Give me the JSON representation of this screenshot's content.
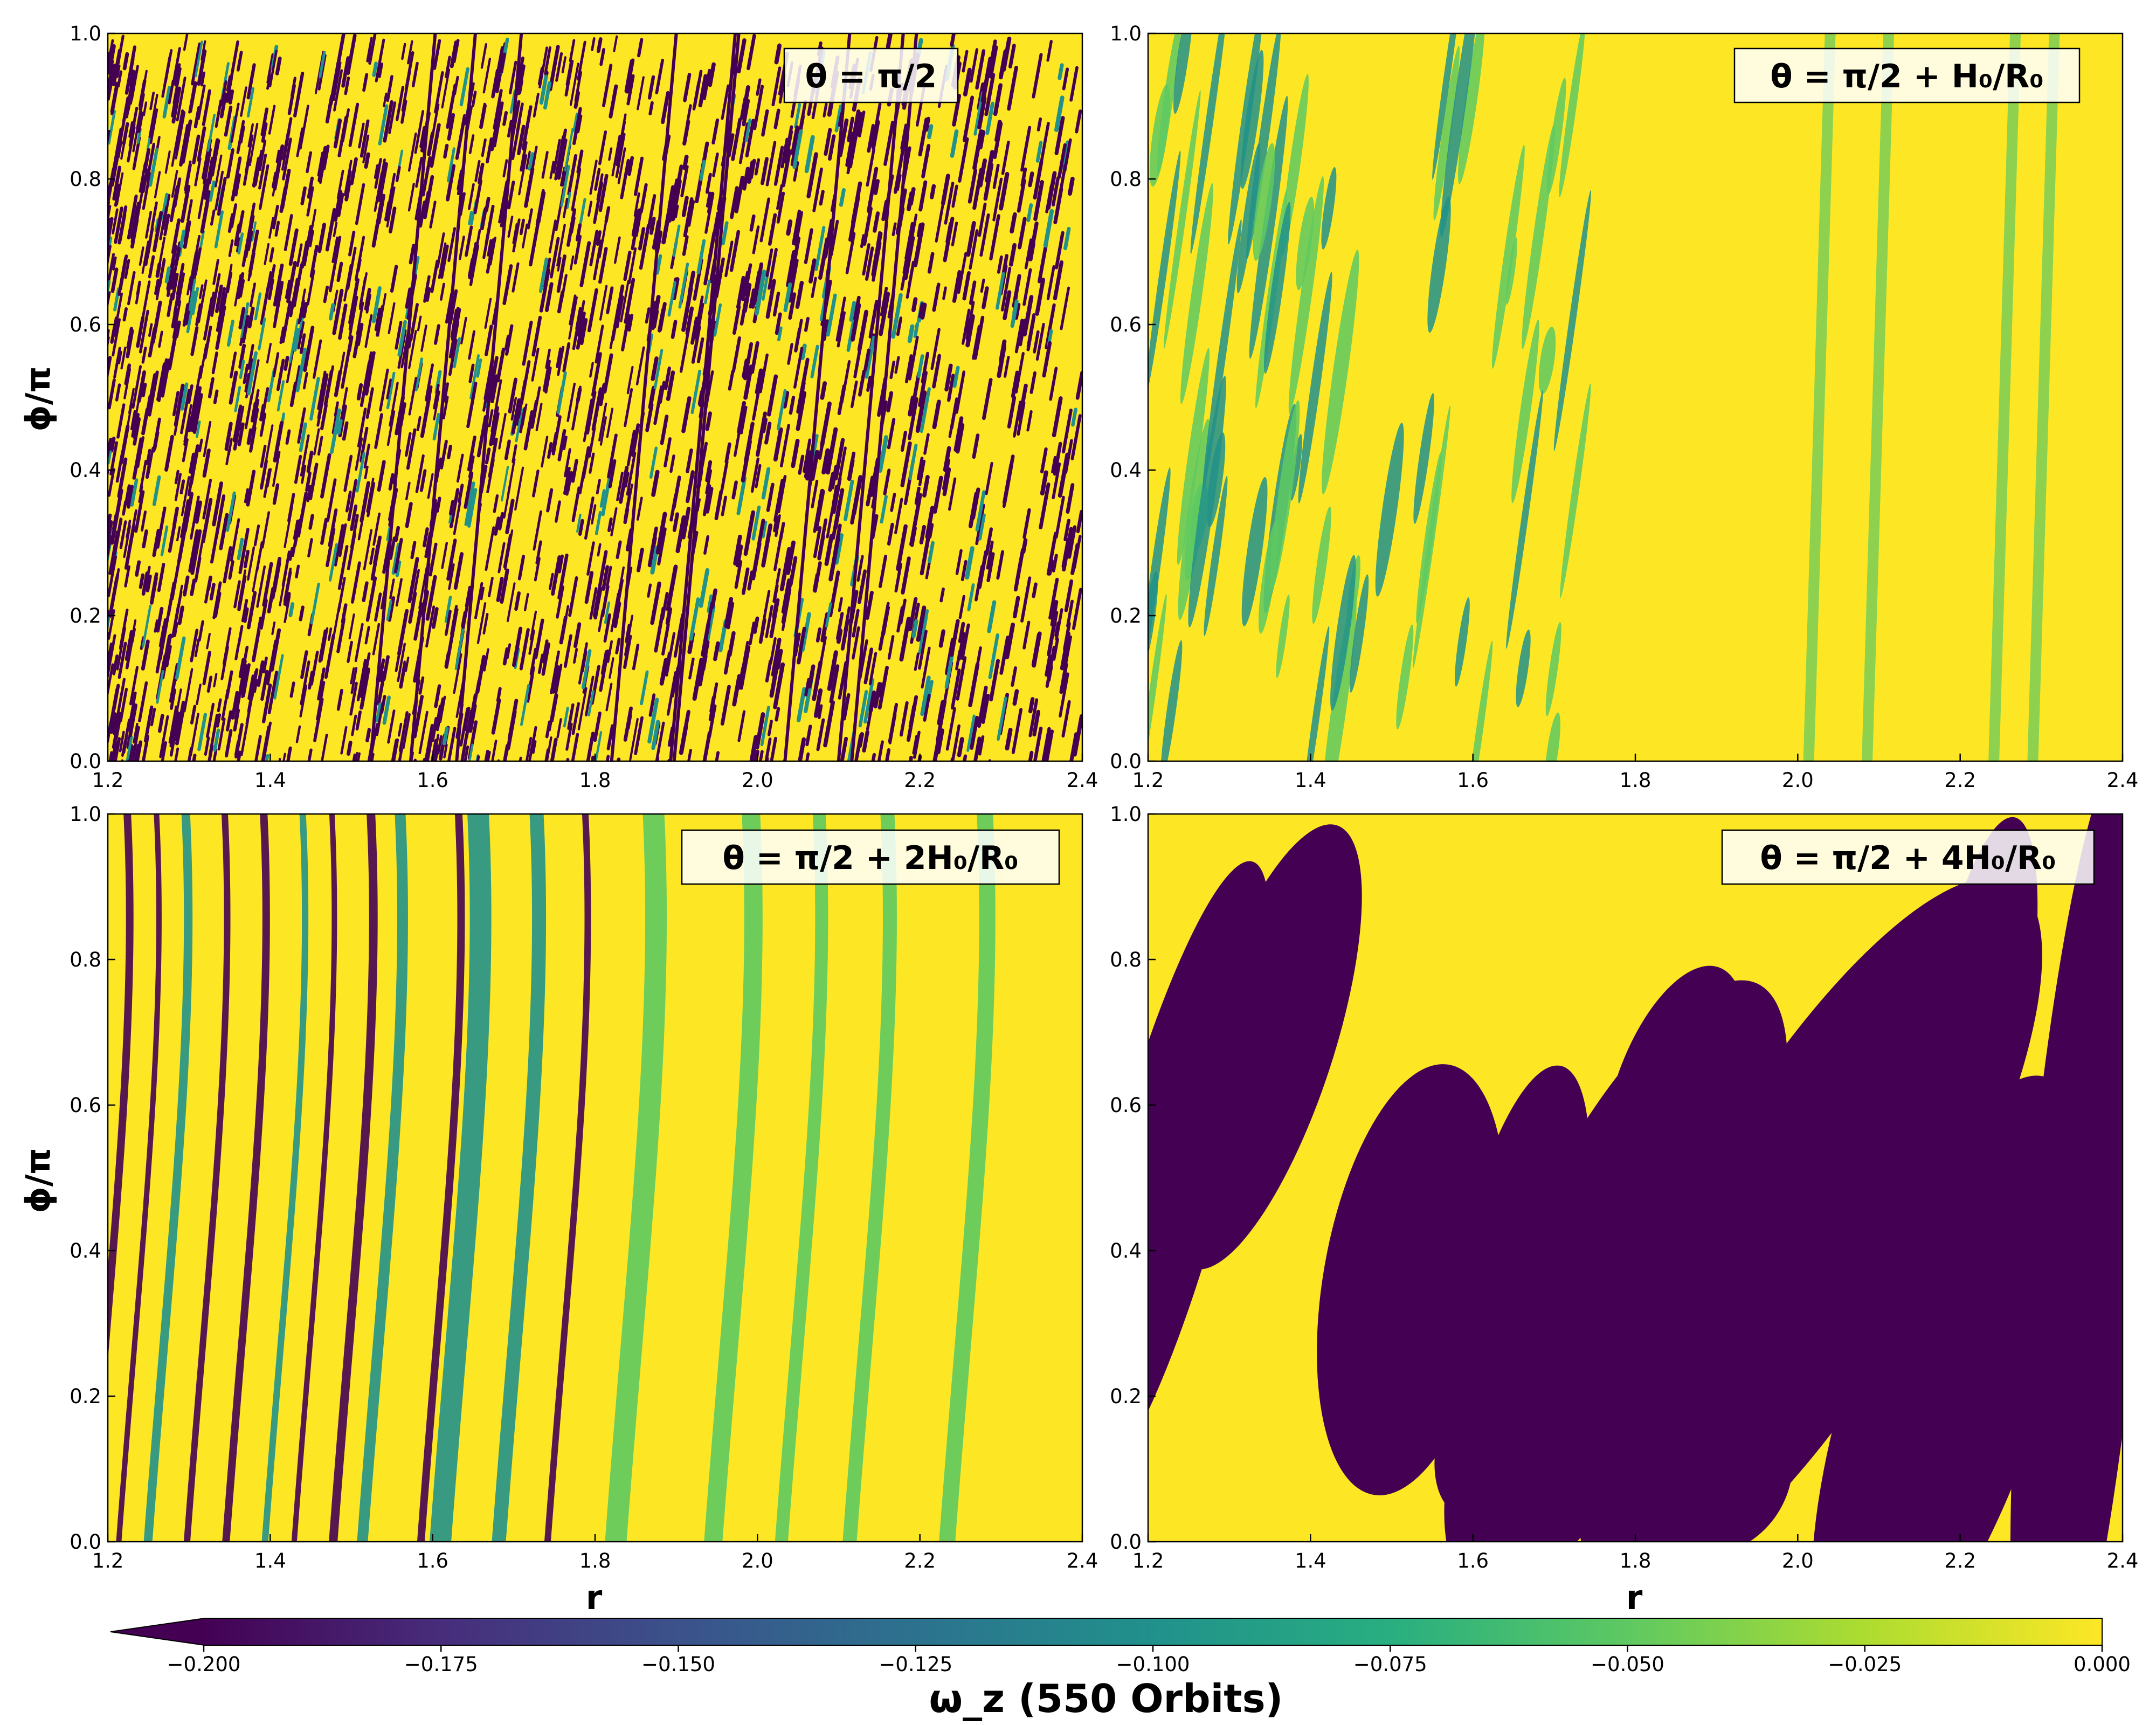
{
  "chart_data": {
    "type": "heatmap",
    "colormap": "viridis",
    "colorbar": {
      "label": "ω_z (550 Orbits)",
      "range": [
        -0.2,
        0.0
      ],
      "extend": "min",
      "orientation": "horizontal",
      "ticks": [
        "−0.200",
        "−0.175",
        "−0.150",
        "−0.125",
        "−0.100",
        "−0.075",
        "−0.050",
        "−0.025",
        "0.000"
      ]
    },
    "shared": {
      "xlabel": "r",
      "ylabel": "ϕ/π",
      "xlim": [
        1.2,
        2.4
      ],
      "ylim": [
        0.0,
        1.0
      ],
      "xticks": [
        "1.2",
        "1.4",
        "1.6",
        "1.8",
        "2.0",
        "2.2",
        "2.4"
      ],
      "yticks": [
        "0.0",
        "0.2",
        "0.4",
        "0.6",
        "0.8",
        "1.0"
      ]
    },
    "panels": [
      {
        "title": "θ = π/2",
        "pattern": "fine-turbulent",
        "description_level": "mixed"
      },
      {
        "title": "θ = π/2 + H₀/R₀",
        "pattern": "streaks",
        "description_level": "mostly-zero"
      },
      {
        "title": "θ = π/2 + 2H₀/R₀",
        "pattern": "bands",
        "description_level": "mixed"
      },
      {
        "title": "θ = π/2 + 4H₀/R₀",
        "pattern": "blobs",
        "description_level": "binary"
      }
    ]
  },
  "colors": {
    "vmin": "#440154",
    "mid": "#21918c",
    "green": "#5ec962",
    "vmax": "#fde725"
  }
}
